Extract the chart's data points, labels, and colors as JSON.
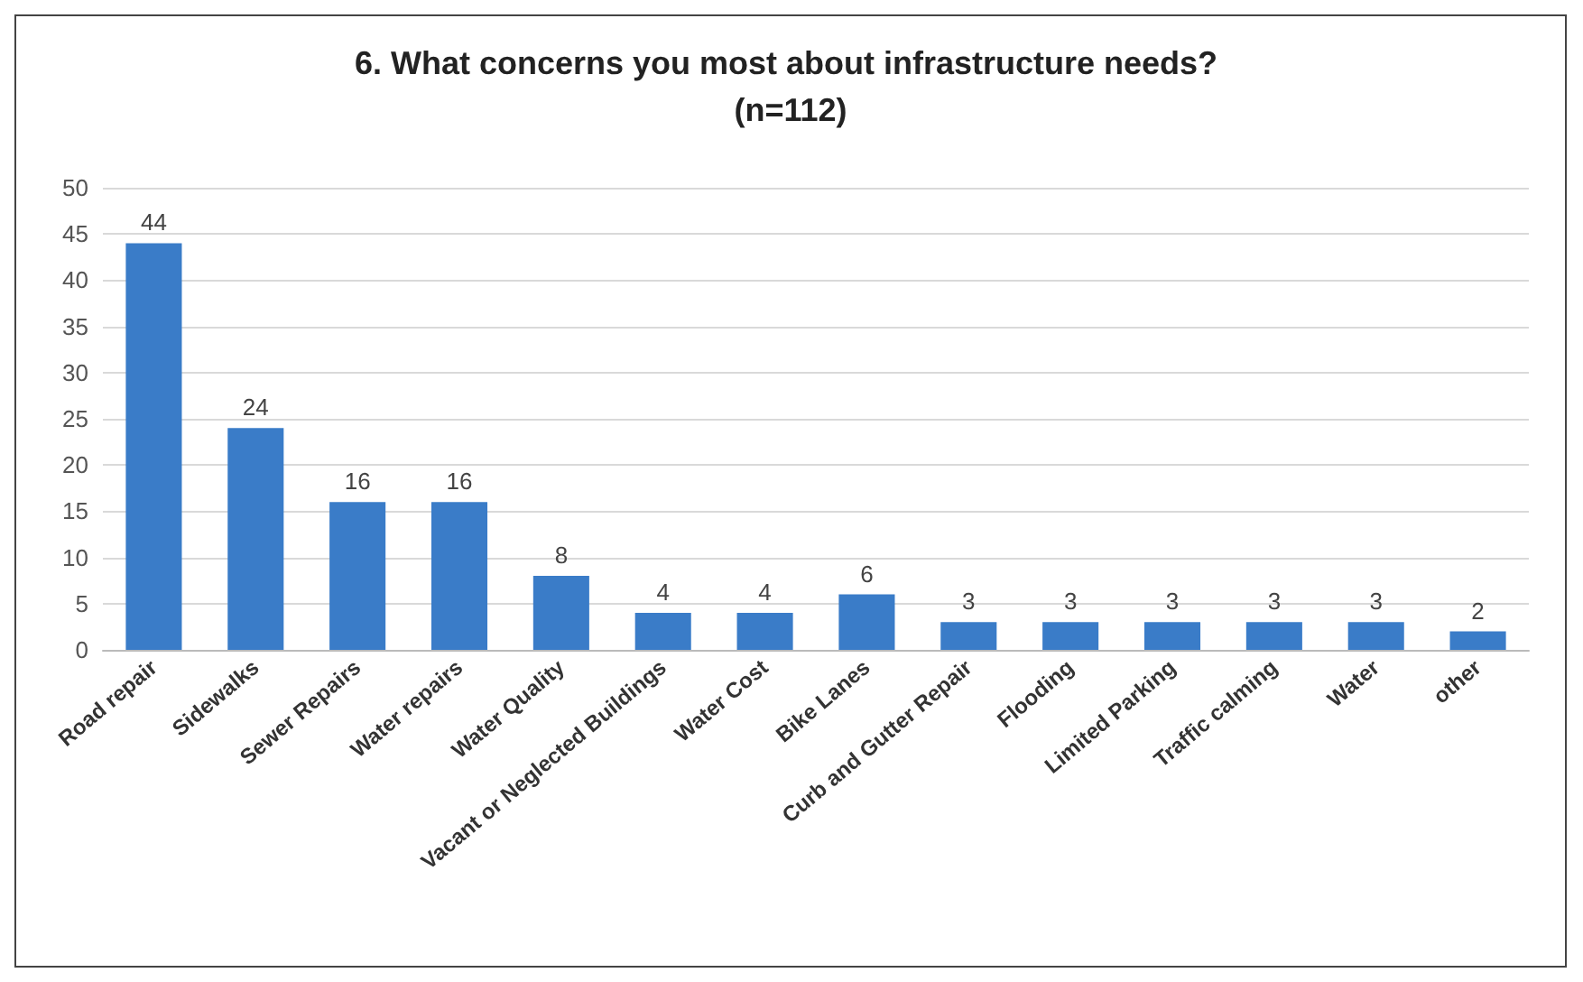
{
  "chart_data": {
    "type": "bar",
    "title": "6. What concerns you most about infrastructure needs? (n=112)",
    "categories": [
      "Road repair",
      "Sidewalks",
      "Sewer Repairs",
      "Water repairs",
      "Water Quality",
      "Vacant or Neglected Buildings",
      "Water Cost",
      "Bike Lanes",
      "Curb and Gutter Repair",
      "Flooding",
      "Limited Parking",
      "Traffic calming",
      "Water",
      "other"
    ],
    "values": [
      44,
      24,
      16,
      16,
      8,
      4,
      4,
      6,
      3,
      3,
      3,
      3,
      3,
      2
    ],
    "color": "#3a7cc8",
    "ylim": [
      0,
      50
    ],
    "yticks": [
      0,
      5,
      10,
      15,
      20,
      25,
      30,
      35,
      40,
      45,
      50
    ],
    "grid": "y",
    "data_labels": true
  }
}
